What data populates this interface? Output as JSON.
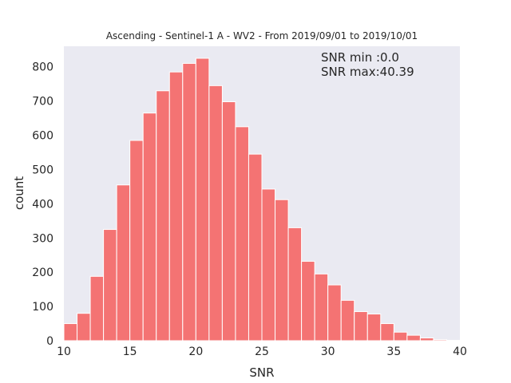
{
  "chart_data": {
    "type": "bar",
    "title": "Ascending - Sentinel-1 A - WV2 - From 2019/09/01 to 2019/10/01",
    "xlabel": "SNR",
    "ylabel": "count",
    "xlim": [
      10,
      40
    ],
    "ylim": [
      0,
      860
    ],
    "xticks": [
      10,
      15,
      20,
      25,
      30,
      35,
      40
    ],
    "yticks": [
      0,
      100,
      200,
      300,
      400,
      500,
      600,
      700,
      800
    ],
    "bin_edges_start": 10,
    "bin_width": 1,
    "values": [
      50,
      80,
      188,
      325,
      455,
      585,
      665,
      730,
      785,
      810,
      825,
      745,
      698,
      625,
      545,
      443,
      412,
      330,
      232,
      195,
      163,
      118,
      85,
      78,
      50,
      25,
      16,
      8,
      3,
      1
    ],
    "annotations": [
      "SNR min :0.0",
      "SNR max:40.39"
    ],
    "grid": false,
    "bar_color": "#f47373",
    "background_color": "#eaeaf2"
  }
}
